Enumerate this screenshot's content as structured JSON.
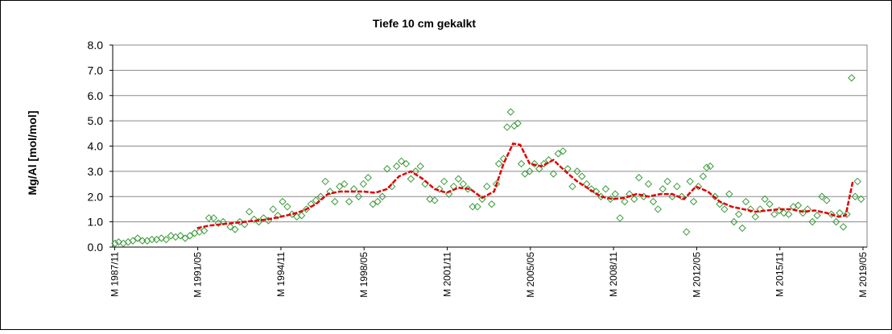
{
  "chart_data": {
    "type": "scatter",
    "title": "Tiefe   10 cm     gekalkt",
    "y_label": "Mg/Al [mol/mol]",
    "ylim": [
      0,
      8
    ],
    "yticks": [
      {
        "value": 0,
        "label": "0.0"
      },
      {
        "value": 1,
        "label": "1.0"
      },
      {
        "value": 2,
        "label": "2.0"
      },
      {
        "value": 3,
        "label": "3.0"
      },
      {
        "value": 4,
        "label": "4.0"
      },
      {
        "value": 5,
        "label": "5.0"
      },
      {
        "value": 6,
        "label": "6.0"
      },
      {
        "value": 7,
        "label": "7.0"
      },
      {
        "value": 8,
        "label": "8.0"
      }
    ],
    "xlim": [
      1987.75,
      2019.5
    ],
    "xticks": [
      {
        "value": 1987.83,
        "label": "M 1987/11"
      },
      {
        "value": 1991.33,
        "label": "M 1991/05"
      },
      {
        "value": 1994.83,
        "label": "M 1994/11"
      },
      {
        "value": 1998.33,
        "label": "M 1998/05"
      },
      {
        "value": 2001.83,
        "label": "M 2001/11"
      },
      {
        "value": 2005.33,
        "label": "M 2005/05"
      },
      {
        "value": 2008.83,
        "label": "M 2008/11"
      },
      {
        "value": 2012.33,
        "label": "M 2012/05"
      },
      {
        "value": 2015.83,
        "label": "M 2015/11"
      },
      {
        "value": 2019.33,
        "label": "M 2019/05"
      }
    ],
    "grid": true,
    "series": [
      {
        "type": "scatter",
        "color": "#3a9a3a",
        "x": [
          1987.85,
          1988.0,
          1988.2,
          1988.4,
          1988.6,
          1988.8,
          1989.0,
          1989.2,
          1989.4,
          1989.6,
          1989.8,
          1990.0,
          1990.2,
          1990.4,
          1990.6,
          1990.8,
          1991.0,
          1991.2,
          1991.4,
          1991.6,
          1991.8,
          1992.0,
          1992.2,
          1992.4,
          1992.7,
          1992.9,
          1993.1,
          1993.3,
          1993.5,
          1993.7,
          1993.9,
          1994.1,
          1994.3,
          1994.5,
          1994.7,
          1994.9,
          1995.1,
          1995.3,
          1995.5,
          1995.7,
          1995.9,
          1996.1,
          1996.3,
          1996.5,
          1996.7,
          1996.9,
          1997.1,
          1997.3,
          1997.5,
          1997.7,
          1997.9,
          1998.1,
          1998.3,
          1998.5,
          1998.7,
          1998.9,
          1999.1,
          1999.3,
          1999.5,
          1999.7,
          1999.9,
          2000.1,
          2000.3,
          2000.5,
          2000.7,
          2000.9,
          2001.1,
          2001.3,
          2001.5,
          2001.7,
          2001.9,
          2002.1,
          2002.3,
          2002.5,
          2002.7,
          2002.9,
          2003.1,
          2003.3,
          2003.5,
          2003.7,
          2003.9,
          2004.0,
          2004.2,
          2004.35,
          2004.5,
          2004.65,
          2004.8,
          2004.95,
          2005.1,
          2005.3,
          2005.5,
          2005.7,
          2005.9,
          2006.1,
          2006.3,
          2006.5,
          2006.7,
          2006.9,
          2007.1,
          2007.3,
          2007.5,
          2007.7,
          2007.9,
          2008.1,
          2008.3,
          2008.5,
          2008.7,
          2008.9,
          2009.1,
          2009.3,
          2009.5,
          2009.7,
          2009.9,
          2010.1,
          2010.3,
          2010.5,
          2010.7,
          2010.9,
          2011.1,
          2011.3,
          2011.5,
          2011.7,
          2011.9,
          2012.05,
          2012.2,
          2012.4,
          2012.6,
          2012.75,
          2012.9,
          2013.1,
          2013.3,
          2013.5,
          2013.7,
          2013.9,
          2014.1,
          2014.25,
          2014.4,
          2014.6,
          2014.8,
          2015.0,
          2015.2,
          2015.4,
          2015.6,
          2015.8,
          2016.0,
          2016.2,
          2016.4,
          2016.6,
          2016.8,
          2017.0,
          2017.2,
          2017.4,
          2017.6,
          2017.8,
          2018.0,
          2018.2,
          2018.35,
          2018.5,
          2018.65,
          2018.85,
          2019.0,
          2019.1,
          2019.25
        ],
        "values": [
          0.15,
          0.2,
          0.15,
          0.2,
          0.25,
          0.35,
          0.25,
          0.25,
          0.3,
          0.3,
          0.35,
          0.3,
          0.45,
          0.4,
          0.45,
          0.35,
          0.45,
          0.55,
          0.6,
          0.65,
          1.15,
          1.15,
          0.95,
          1.0,
          0.8,
          0.7,
          1.0,
          0.9,
          1.4,
          1.1,
          1.0,
          1.15,
          1.05,
          1.5,
          1.25,
          1.8,
          1.6,
          1.3,
          1.2,
          1.25,
          1.5,
          1.7,
          1.85,
          2.0,
          2.6,
          2.2,
          1.8,
          2.4,
          2.5,
          1.8,
          2.3,
          2.0,
          2.5,
          2.75,
          1.7,
          1.8,
          2.0,
          3.1,
          2.4,
          3.2,
          3.4,
          3.3,
          2.7,
          3.0,
          3.2,
          2.5,
          1.9,
          1.85,
          2.3,
          2.6,
          2.1,
          2.4,
          2.7,
          2.5,
          2.3,
          1.6,
          1.6,
          1.9,
          2.4,
          1.7,
          2.5,
          3.3,
          3.5,
          4.75,
          5.35,
          4.8,
          4.9,
          3.3,
          2.9,
          3.0,
          3.3,
          3.1,
          3.3,
          3.45,
          2.9,
          3.7,
          3.8,
          3.1,
          2.4,
          3.0,
          2.8,
          2.5,
          2.3,
          2.2,
          2.0,
          2.3,
          1.9,
          2.1,
          1.15,
          1.8,
          2.1,
          1.9,
          2.75,
          2.0,
          2.5,
          1.8,
          1.5,
          2.3,
          2.6,
          2.0,
          2.4,
          2.0,
          0.6,
          2.6,
          1.8,
          2.4,
          2.8,
          3.15,
          3.2,
          2.0,
          1.7,
          1.5,
          2.1,
          1.0,
          1.3,
          0.75,
          1.8,
          1.5,
          1.2,
          1.5,
          1.9,
          1.7,
          1.3,
          1.45,
          1.35,
          1.3,
          1.6,
          1.65,
          1.35,
          1.5,
          1.0,
          1.25,
          2.0,
          1.85,
          1.3,
          1.0,
          1.35,
          0.8,
          1.3,
          6.7,
          2.0,
          2.6,
          1.9
        ]
      },
      {
        "type": "line",
        "color": "#e00000",
        "x": [
          1991.3,
          1991.8,
          1992.3,
          1992.8,
          1993.3,
          1993.8,
          1994.3,
          1994.8,
          1995.3,
          1995.8,
          1996.3,
          1996.8,
          1997.3,
          1997.8,
          1998.3,
          1998.8,
          1999.3,
          1999.8,
          2000.3,
          2000.8,
          2001.3,
          2001.8,
          2002.3,
          2002.8,
          2003.3,
          2003.8,
          2004.2,
          2004.6,
          2004.9,
          2005.3,
          2005.8,
          2006.3,
          2006.8,
          2007.3,
          2007.8,
          2008.3,
          2008.8,
          2009.3,
          2009.8,
          2010.3,
          2010.8,
          2011.3,
          2011.8,
          2012.3,
          2012.8,
          2013.3,
          2013.8,
          2014.3,
          2014.8,
          2015.3,
          2015.8,
          2016.3,
          2016.8,
          2017.3,
          2017.8,
          2018.3,
          2018.6,
          2018.9
        ],
        "values": [
          0.75,
          0.85,
          0.9,
          0.95,
          1.0,
          1.05,
          1.1,
          1.2,
          1.3,
          1.45,
          1.7,
          2.1,
          2.2,
          2.2,
          2.2,
          2.15,
          2.3,
          2.8,
          3.0,
          2.7,
          2.3,
          2.15,
          2.35,
          2.3,
          1.95,
          2.2,
          3.3,
          4.1,
          4.05,
          3.3,
          3.2,
          3.45,
          3.0,
          2.6,
          2.3,
          2.0,
          1.9,
          1.95,
          2.1,
          2.0,
          2.1,
          2.1,
          1.9,
          2.4,
          2.2,
          1.8,
          1.6,
          1.5,
          1.4,
          1.45,
          1.5,
          1.5,
          1.4,
          1.45,
          1.35,
          1.2,
          1.25,
          2.6
        ]
      }
    ]
  }
}
